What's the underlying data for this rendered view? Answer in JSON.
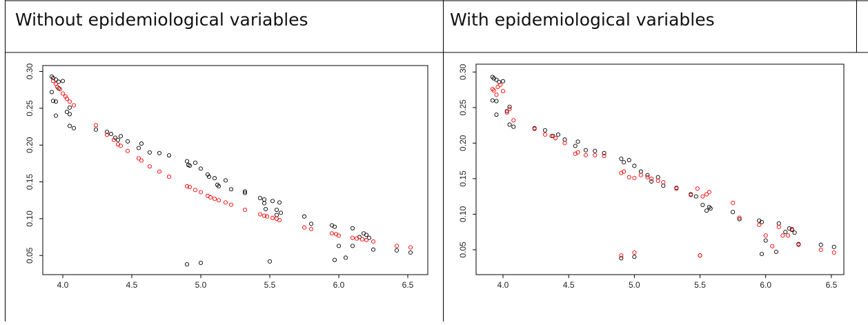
{
  "chart_data": [
    {
      "type": "scatter",
      "title": "Without epidemiological variables",
      "xlim": [
        3.855,
        6.645
      ],
      "ylim": [
        0.024,
        0.308
      ],
      "xticks": [
        {
          "value": 4,
          "label": "4.0"
        },
        4.5,
        {
          "value": 5,
          "label": "5.0"
        },
        5.5,
        {
          "value": 6,
          "label": "6.0"
        },
        6.5
      ],
      "yticks": [
        0.05,
        {
          "value": 0.1,
          "label": "0.10"
        },
        0.15,
        {
          "value": 0.2,
          "label": "0.20"
        },
        0.25,
        {
          "value": 0.3,
          "label": "0.30"
        }
      ],
      "series": [
        {
          "color": "#000000",
          "x": [
            3.92,
            3.93,
            3.95,
            3.97,
            4.0,
            3.92,
            3.93,
            3.95,
            3.95,
            3.97,
            4.03,
            4.05,
            4.05,
            4.05,
            4.08,
            4.24,
            4.32,
            4.35,
            4.38,
            4.4,
            4.42,
            4.47,
            4.55,
            4.57,
            4.63,
            4.7,
            4.77,
            4.9,
            4.91,
            4.92,
            4.96,
            5.0,
            5.05,
            5.06,
            5.1,
            5.12,
            5.13,
            5.18,
            5.22,
            5.32,
            5.32,
            5.43,
            5.46,
            5.46,
            5.47,
            5.52,
            5.55,
            5.55,
            5.57,
            5.58,
            5.75,
            5.8,
            5.95,
            5.97,
            6.0,
            5.97,
            6.05,
            6.1,
            6.1,
            6.15,
            6.18,
            6.2,
            6.22,
            6.25,
            6.42,
            6.52,
            4.9,
            5.0,
            5.5
          ],
          "values": [
            0.293,
            0.291,
            0.289,
            0.286,
            0.287,
            0.272,
            0.26,
            0.259,
            0.24,
            0.277,
            0.245,
            0.242,
            0.251,
            0.226,
            0.223,
            0.221,
            0.218,
            0.215,
            0.21,
            0.207,
            0.212,
            0.205,
            0.196,
            0.202,
            0.19,
            0.189,
            0.186,
            0.178,
            0.173,
            0.172,
            0.176,
            0.168,
            0.16,
            0.157,
            0.155,
            0.146,
            0.144,
            0.152,
            0.14,
            0.137,
            0.135,
            0.128,
            0.126,
            0.121,
            0.113,
            0.124,
            0.105,
            0.112,
            0.122,
            0.108,
            0.103,
            0.093,
            0.091,
            0.089,
            0.063,
            0.044,
            0.047,
            0.087,
            0.063,
            0.075,
            0.08,
            0.078,
            0.074,
            0.058,
            0.057,
            0.054,
            0.038,
            0.04,
            0.042
          ]
        },
        {
          "color": "#ff0000",
          "x": [
            3.93,
            3.95,
            3.96,
            3.98,
            4.0,
            4.02,
            4.03,
            4.05,
            4.08,
            4.24,
            4.32,
            4.37,
            4.4,
            4.42,
            4.47,
            4.55,
            4.57,
            4.63,
            4.7,
            4.77,
            4.9,
            4.92,
            4.96,
            5.0,
            5.05,
            5.07,
            5.1,
            5.13,
            5.18,
            5.22,
            5.32,
            5.43,
            5.46,
            5.48,
            5.52,
            5.55,
            5.57,
            5.75,
            5.8,
            5.95,
            5.98,
            6.0,
            6.1,
            6.13,
            6.17,
            6.2,
            6.25,
            6.42,
            6.52
          ],
          "values": [
            0.287,
            0.283,
            0.279,
            0.276,
            0.27,
            0.266,
            0.263,
            0.259,
            0.254,
            0.227,
            0.214,
            0.207,
            0.201,
            0.199,
            0.192,
            0.182,
            0.179,
            0.171,
            0.164,
            0.157,
            0.144,
            0.143,
            0.139,
            0.136,
            0.131,
            0.129,
            0.127,
            0.125,
            0.122,
            0.119,
            0.112,
            0.106,
            0.104,
            0.103,
            0.101,
            0.1,
            0.098,
            0.088,
            0.086,
            0.08,
            0.079,
            0.077,
            0.074,
            0.073,
            0.072,
            0.071,
            0.069,
            0.063,
            0.061
          ]
        }
      ]
    },
    {
      "type": "scatter",
      "title": "With epidemiological variables",
      "xlim": [
        3.795,
        6.595
      ],
      "ylim": [
        0.015,
        0.311
      ],
      "xticks": [
        {
          "value": 4,
          "label": "4.0"
        },
        4.5,
        {
          "value": 5,
          "label": "5.0"
        },
        5.5,
        {
          "value": 6,
          "label": "6.0"
        },
        6.5
      ],
      "yticks": [
        0.05,
        {
          "value": 0.1,
          "label": "0.10"
        },
        0.15,
        {
          "value": 0.2,
          "label": "0.20"
        },
        0.25,
        {
          "value": 0.3,
          "label": "0.30"
        }
      ],
      "series": [
        {
          "color": "#000000",
          "x": [
            3.92,
            3.93,
            3.95,
            3.97,
            4.0,
            3.92,
            3.95,
            3.95,
            4.03,
            4.05,
            4.05,
            4.08,
            4.24,
            4.32,
            4.38,
            4.42,
            4.47,
            4.55,
            4.57,
            4.63,
            4.7,
            4.77,
            4.9,
            4.92,
            4.96,
            5.0,
            5.05,
            5.1,
            5.13,
            5.18,
            5.22,
            5.32,
            5.43,
            5.47,
            5.52,
            5.55,
            5.57,
            5.58,
            5.75,
            5.8,
            5.95,
            5.97,
            6.0,
            5.97,
            6.08,
            6.1,
            6.15,
            6.18,
            6.2,
            6.22,
            6.25,
            6.42,
            6.52,
            4.9,
            5.0,
            5.5
          ],
          "values": [
            0.293,
            0.291,
            0.289,
            0.286,
            0.287,
            0.26,
            0.259,
            0.24,
            0.245,
            0.251,
            0.226,
            0.223,
            0.221,
            0.218,
            0.21,
            0.212,
            0.205,
            0.196,
            0.202,
            0.19,
            0.189,
            0.186,
            0.178,
            0.173,
            0.176,
            0.168,
            0.16,
            0.155,
            0.146,
            0.152,
            0.14,
            0.137,
            0.128,
            0.125,
            0.113,
            0.105,
            0.11,
            0.108,
            0.103,
            0.093,
            0.091,
            0.089,
            0.063,
            0.044,
            0.047,
            0.087,
            0.075,
            0.08,
            0.078,
            0.074,
            0.058,
            0.057,
            0.054,
            0.038,
            0.04,
            0.042
          ]
        },
        {
          "color": "#ff0000",
          "x": [
            3.92,
            3.93,
            3.95,
            3.96,
            3.98,
            4.0,
            4.03,
            4.05,
            4.08,
            4.24,
            4.32,
            4.37,
            4.4,
            4.47,
            4.55,
            4.57,
            4.63,
            4.7,
            4.77,
            4.9,
            4.92,
            4.96,
            5.0,
            5.05,
            5.1,
            5.13,
            5.18,
            5.22,
            5.32,
            5.43,
            5.48,
            5.52,
            5.55,
            5.57,
            5.75,
            5.8,
            5.95,
            6.0,
            6.05,
            6.1,
            6.13,
            6.17,
            6.2,
            6.25,
            6.42,
            6.52,
            4.9,
            5.0,
            5.5
          ],
          "values": [
            0.276,
            0.274,
            0.268,
            0.279,
            0.282,
            0.273,
            0.243,
            0.248,
            0.232,
            0.22,
            0.212,
            0.21,
            0.207,
            0.2,
            0.185,
            0.187,
            0.183,
            0.183,
            0.182,
            0.158,
            0.16,
            0.152,
            0.151,
            0.155,
            0.152,
            0.15,
            0.147,
            0.145,
            0.136,
            0.127,
            0.136,
            0.125,
            0.128,
            0.131,
            0.116,
            0.095,
            0.085,
            0.07,
            0.055,
            0.082,
            0.07,
            0.07,
            0.079,
            0.057,
            0.05,
            0.046,
            0.042,
            0.046,
            0.042
          ]
        }
      ]
    }
  ]
}
